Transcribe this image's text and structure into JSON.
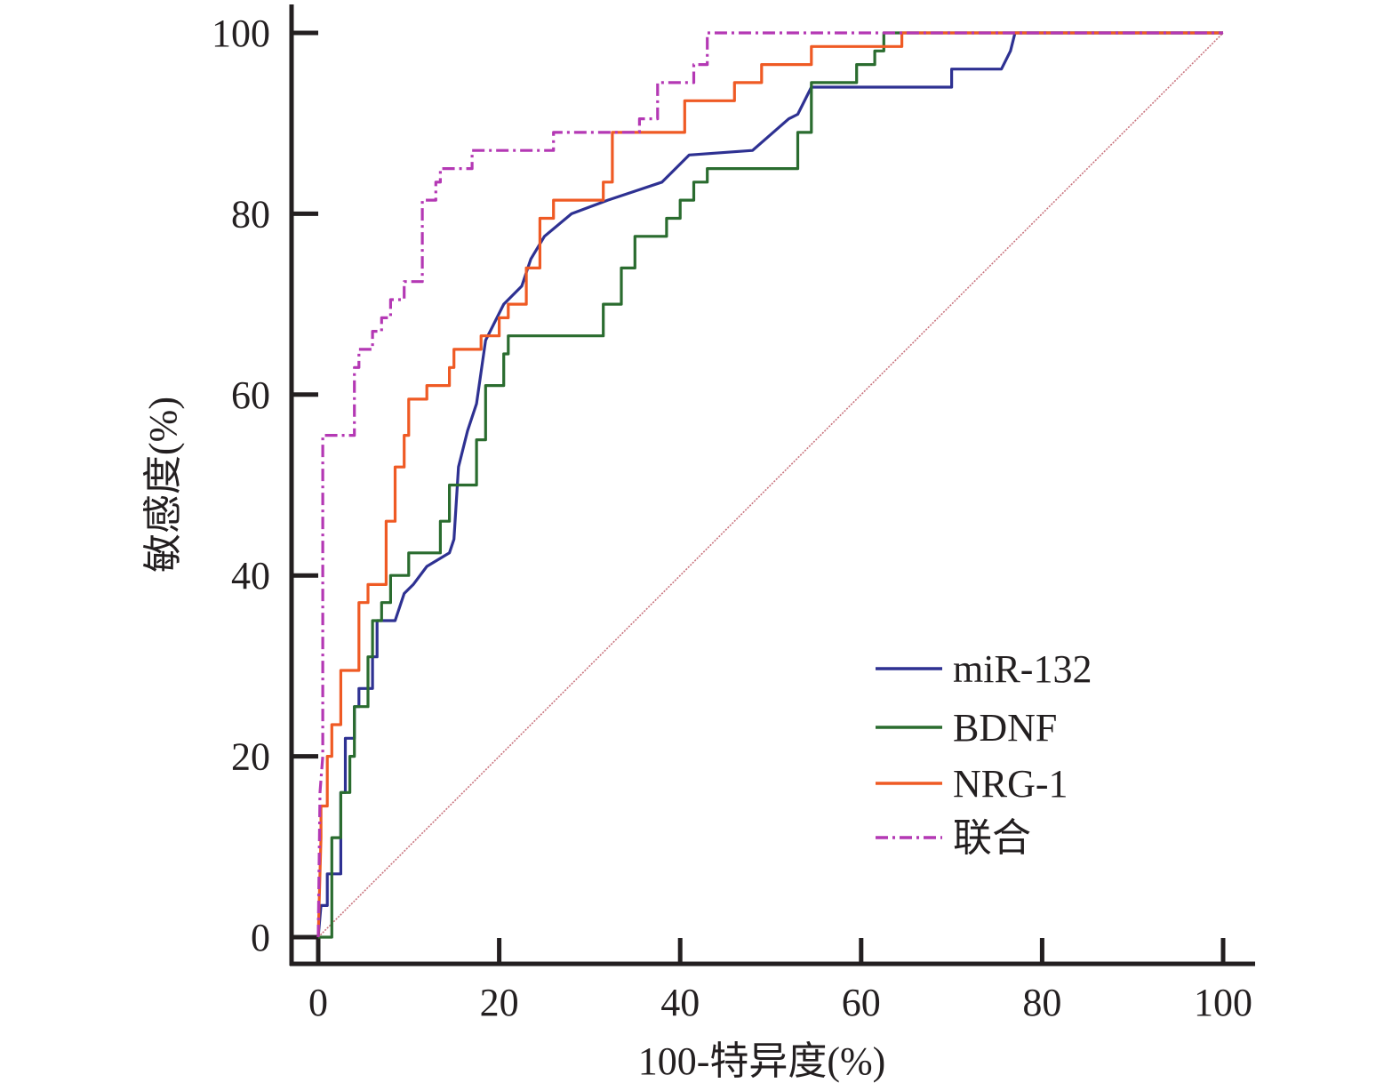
{
  "chart_data": {
    "type": "line",
    "title": "",
    "xlabel": "100-特异度(%)",
    "ylabel": "敏感度(%)",
    "xlim": [
      0,
      100
    ],
    "ylim": [
      0,
      100
    ],
    "xticks": [
      0,
      20,
      40,
      60,
      80,
      100
    ],
    "yticks": [
      0,
      20,
      40,
      60,
      80,
      100
    ],
    "x_tick_labels": [
      "0",
      "20",
      "40",
      "60",
      "80",
      "100"
    ],
    "y_tick_labels": [
      "0",
      "20",
      "40",
      "60",
      "80",
      "100"
    ],
    "grid": false,
    "legend_position": "bottom-right",
    "reference_line": {
      "name": "diagonal",
      "points": [
        [
          0,
          0
        ],
        [
          100,
          100
        ]
      ],
      "color": "#c9757f"
    },
    "series": [
      {
        "name": "miR-132",
        "color": "#2e3192",
        "style": "solid",
        "points": [
          [
            0,
            0
          ],
          [
            0.3,
            3.5
          ],
          [
            1.0,
            3.5
          ],
          [
            1.0,
            7
          ],
          [
            2.5,
            7
          ],
          [
            2.5,
            16
          ],
          [
            3.0,
            16
          ],
          [
            3.0,
            22
          ],
          [
            4.0,
            22
          ],
          [
            4.0,
            25.5
          ],
          [
            4.5,
            25.5
          ],
          [
            4.5,
            27.5
          ],
          [
            6.0,
            27.5
          ],
          [
            6.0,
            31
          ],
          [
            6.5,
            31
          ],
          [
            6.5,
            35
          ],
          [
            8.5,
            35
          ],
          [
            9.5,
            38
          ],
          [
            10.5,
            39
          ],
          [
            12.0,
            41
          ],
          [
            14.5,
            42.5
          ],
          [
            15.0,
            44
          ],
          [
            15.5,
            52
          ],
          [
            16.5,
            56
          ],
          [
            17.5,
            59
          ],
          [
            18.5,
            66
          ],
          [
            20.5,
            70
          ],
          [
            22.5,
            72
          ],
          [
            23.5,
            75
          ],
          [
            25.0,
            77.5
          ],
          [
            28.0,
            80
          ],
          [
            32.0,
            81.5
          ],
          [
            35.0,
            82.5
          ],
          [
            38.0,
            83.5
          ],
          [
            41.0,
            86.5
          ],
          [
            48.0,
            87
          ],
          [
            52.0,
            90.5
          ],
          [
            53.0,
            91
          ],
          [
            54.5,
            94
          ],
          [
            70.0,
            94
          ],
          [
            70.0,
            96
          ],
          [
            75.5,
            96
          ],
          [
            76.5,
            98
          ],
          [
            77.0,
            100
          ],
          [
            100,
            100
          ]
        ]
      },
      {
        "name": "BDNF",
        "color": "#2a6c2f",
        "style": "solid",
        "points": [
          [
            0,
            0
          ],
          [
            0.5,
            0
          ],
          [
            1.5,
            0
          ],
          [
            1.5,
            11
          ],
          [
            2.5,
            11
          ],
          [
            2.5,
            16
          ],
          [
            3.5,
            16
          ],
          [
            3.5,
            20
          ],
          [
            4.0,
            20
          ],
          [
            4.0,
            25.5
          ],
          [
            5.5,
            25.5
          ],
          [
            5.5,
            31
          ],
          [
            6.0,
            31
          ],
          [
            6.0,
            35
          ],
          [
            7.0,
            35
          ],
          [
            7.0,
            37
          ],
          [
            8.0,
            37
          ],
          [
            8.0,
            40
          ],
          [
            10.0,
            40
          ],
          [
            10.0,
            42.5
          ],
          [
            13.5,
            42.5
          ],
          [
            13.5,
            46
          ],
          [
            14.5,
            46
          ],
          [
            14.5,
            50
          ],
          [
            17.5,
            50
          ],
          [
            17.5,
            55
          ],
          [
            18.5,
            55
          ],
          [
            18.5,
            61
          ],
          [
            20.5,
            61
          ],
          [
            20.5,
            64.5
          ],
          [
            21.0,
            64.5
          ],
          [
            21.0,
            66.5
          ],
          [
            31.5,
            66.5
          ],
          [
            31.5,
            70
          ],
          [
            33.5,
            70
          ],
          [
            33.5,
            74
          ],
          [
            35.0,
            74
          ],
          [
            35.0,
            77.5
          ],
          [
            38.5,
            77.5
          ],
          [
            38.5,
            79.5
          ],
          [
            40.0,
            79.5
          ],
          [
            40.0,
            81.5
          ],
          [
            41.5,
            81.5
          ],
          [
            41.5,
            83.5
          ],
          [
            43.0,
            83.5
          ],
          [
            43.0,
            85
          ],
          [
            53.0,
            85
          ],
          [
            53.0,
            89
          ],
          [
            54.5,
            89
          ],
          [
            54.5,
            94.5
          ],
          [
            59.5,
            94.5
          ],
          [
            59.5,
            96.5
          ],
          [
            61.5,
            96.5
          ],
          [
            61.5,
            98
          ],
          [
            62.5,
            98
          ],
          [
            62.5,
            100
          ],
          [
            100,
            100
          ]
        ]
      },
      {
        "name": "NRG-1",
        "color": "#ef5a24",
        "style": "solid",
        "points": [
          [
            0,
            0
          ],
          [
            0.3,
            11
          ],
          [
            0.3,
            14.5
          ],
          [
            1.0,
            14.5
          ],
          [
            1.0,
            20
          ],
          [
            1.5,
            20
          ],
          [
            1.5,
            23.5
          ],
          [
            2.5,
            23.5
          ],
          [
            2.5,
            29.5
          ],
          [
            4.5,
            29.5
          ],
          [
            4.5,
            37
          ],
          [
            5.5,
            37
          ],
          [
            5.5,
            39
          ],
          [
            7.5,
            39
          ],
          [
            7.5,
            46
          ],
          [
            8.5,
            46
          ],
          [
            8.5,
            52
          ],
          [
            9.5,
            52
          ],
          [
            9.5,
            55.5
          ],
          [
            10.0,
            55.5
          ],
          [
            10.0,
            59.5
          ],
          [
            12.0,
            59.5
          ],
          [
            12.0,
            61
          ],
          [
            14.5,
            61
          ],
          [
            14.5,
            63
          ],
          [
            15.0,
            63
          ],
          [
            15.0,
            65
          ],
          [
            18.0,
            65
          ],
          [
            18.0,
            66.5
          ],
          [
            20.0,
            66.5
          ],
          [
            20.0,
            68.5
          ],
          [
            21.0,
            68.5
          ],
          [
            21.0,
            70
          ],
          [
            23.0,
            70
          ],
          [
            23.0,
            74
          ],
          [
            24.5,
            74
          ],
          [
            24.5,
            79.5
          ],
          [
            26.0,
            79.5
          ],
          [
            26.0,
            81.5
          ],
          [
            31.5,
            81.5
          ],
          [
            31.5,
            83.5
          ],
          [
            32.5,
            83.5
          ],
          [
            32.5,
            89
          ],
          [
            40.5,
            89
          ],
          [
            40.5,
            92.5
          ],
          [
            46.0,
            92.5
          ],
          [
            46.0,
            94.5
          ],
          [
            49.0,
            94.5
          ],
          [
            49.0,
            96.5
          ],
          [
            54.5,
            96.5
          ],
          [
            54.5,
            98.5
          ],
          [
            64.5,
            98.5
          ],
          [
            64.5,
            100
          ],
          [
            100,
            100
          ]
        ]
      },
      {
        "name": "联合",
        "color": "#b438b4",
        "style": "dashdot",
        "points": [
          [
            0,
            0
          ],
          [
            0.2,
            16
          ],
          [
            0.5,
            20
          ],
          [
            0.5,
            55.5
          ],
          [
            4.0,
            55.5
          ],
          [
            4.0,
            63
          ],
          [
            4.5,
            63
          ],
          [
            4.5,
            65
          ],
          [
            6.0,
            65
          ],
          [
            6.0,
            67
          ],
          [
            7.0,
            67
          ],
          [
            7.0,
            68.5
          ],
          [
            8.0,
            68.5
          ],
          [
            8.0,
            70.5
          ],
          [
            9.5,
            70.5
          ],
          [
            9.5,
            72.5
          ],
          [
            11.5,
            72.5
          ],
          [
            11.5,
            81.5
          ],
          [
            13.0,
            81.5
          ],
          [
            13.0,
            83.5
          ],
          [
            13.5,
            83.5
          ],
          [
            13.5,
            85
          ],
          [
            17.0,
            85
          ],
          [
            17.0,
            87
          ],
          [
            26.0,
            87
          ],
          [
            26.0,
            89
          ],
          [
            35.5,
            89
          ],
          [
            35.5,
            90.5
          ],
          [
            37.5,
            90.5
          ],
          [
            37.5,
            94.5
          ],
          [
            41.5,
            94.5
          ],
          [
            41.5,
            96.5
          ],
          [
            43.0,
            96.5
          ],
          [
            43.0,
            100
          ],
          [
            100,
            100
          ]
        ]
      }
    ]
  }
}
